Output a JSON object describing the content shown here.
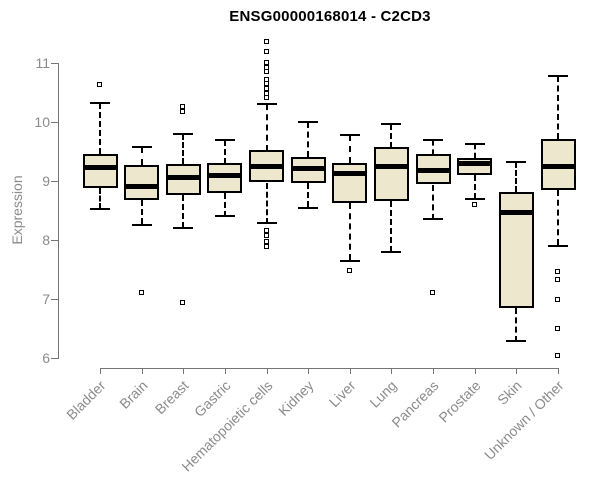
{
  "chart_data": {
    "type": "boxplot",
    "title": "ENSG00000168014 - C2CD3",
    "xlabel": "",
    "ylabel": "Expression",
    "ylim": [
      6,
      11
    ],
    "yticks": [
      6,
      7,
      8,
      9,
      10,
      11
    ],
    "grid": false,
    "legend": "none",
    "categories": [
      "Bladder",
      "Brain",
      "Breast",
      "Gastric",
      "Hematopoietic cells",
      "Kidney",
      "Liver",
      "Lung",
      "Pancreas",
      "Prostate",
      "Skin",
      "Unknown / Other"
    ],
    "boxes": [
      {
        "label": "Bladder",
        "low": 8.52,
        "q1": 8.88,
        "median": 9.23,
        "q3": 9.46,
        "high": 10.32,
        "outliers": [
          10.62
        ]
      },
      {
        "label": "Brain",
        "low": 8.26,
        "q1": 8.67,
        "median": 8.91,
        "q3": 9.27,
        "high": 9.57,
        "outliers": [
          7.1
        ]
      },
      {
        "label": "Breast",
        "low": 8.2,
        "q1": 8.76,
        "median": 9.06,
        "q3": 9.29,
        "high": 9.8,
        "outliers": [
          10.26,
          10.17,
          6.93
        ]
      },
      {
        "label": "Gastric",
        "low": 8.4,
        "q1": 8.8,
        "median": 9.1,
        "q3": 9.3,
        "high": 9.7,
        "outliers": []
      },
      {
        "label": "Hematopoietic cells",
        "low": 8.28,
        "q1": 8.97,
        "median": 9.25,
        "q3": 9.52,
        "high": 10.31,
        "outliers": [
          11.35,
          11.18,
          11.0,
          10.92,
          10.85,
          10.72,
          10.64,
          10.56,
          10.48,
          10.4,
          8.15,
          8.06,
          7.97,
          7.88
        ]
      },
      {
        "label": "Kidney",
        "low": 8.55,
        "q1": 8.96,
        "median": 9.22,
        "q3": 9.4,
        "high": 10.0,
        "outliers": []
      },
      {
        "label": "Liver",
        "low": 7.65,
        "q1": 8.62,
        "median": 9.13,
        "q3": 9.3,
        "high": 9.78,
        "outliers": [
          7.48
        ]
      },
      {
        "label": "Lung",
        "low": 7.8,
        "q1": 8.66,
        "median": 9.24,
        "q3": 9.57,
        "high": 9.97,
        "outliers": []
      },
      {
        "label": "Pancreas",
        "low": 8.35,
        "q1": 8.94,
        "median": 9.17,
        "q3": 9.45,
        "high": 9.7,
        "outliers": [
          7.1
        ]
      },
      {
        "label": "Prostate",
        "low": 8.7,
        "q1": 9.11,
        "median": 9.3,
        "q3": 9.39,
        "high": 9.63,
        "outliers": [
          8.6
        ]
      },
      {
        "label": "Skin",
        "low": 6.28,
        "q1": 6.85,
        "median": 8.46,
        "q3": 8.81,
        "high": 9.32,
        "outliers": []
      },
      {
        "label": "Unknown / Other",
        "low": 7.9,
        "q1": 8.84,
        "median": 9.24,
        "q3": 9.71,
        "high": 10.78,
        "outliers": [
          7.45,
          7.33,
          6.99,
          6.5,
          6.04
        ]
      }
    ],
    "colors": {
      "box_fill": "#ede7cd",
      "box_border": "#000000",
      "median": "#000000",
      "whisker": "#000000",
      "outlier": "#000000",
      "axis_line": "#757575",
      "axis_text": "#8b8b8b",
      "title": "#000000",
      "background": "#ffffff"
    }
  }
}
